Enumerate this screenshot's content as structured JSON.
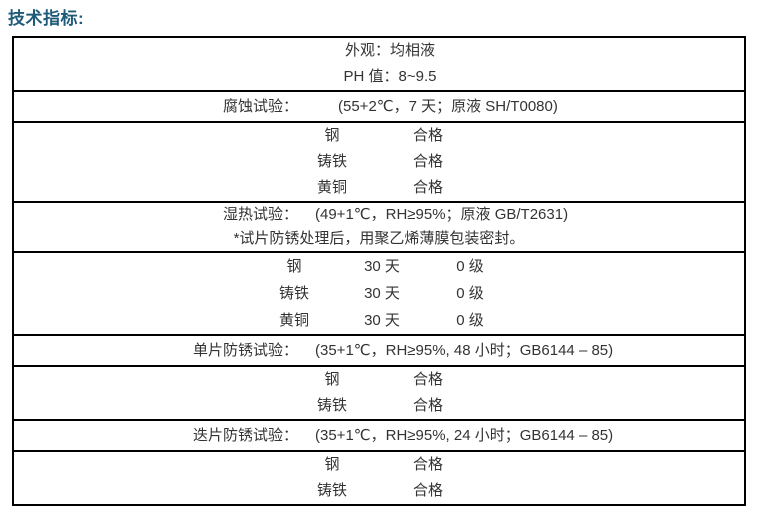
{
  "title": "技术指标:",
  "accent_color": "#1F5B78",
  "table": {
    "general": {
      "appearance": "外观：均相液",
      "ph": "PH 值：8~9.5"
    },
    "corrosion_test": {
      "label": "腐蚀试验：",
      "params": "(55+2℃，7 天；原液 SH/T0080)"
    },
    "corrosion_results": [
      {
        "material": "钢",
        "result": "合格"
      },
      {
        "material": "铸铁",
        "result": "合格"
      },
      {
        "material": "黄铜",
        "result": "合格"
      }
    ],
    "damp_heat_test": {
      "label": "湿热试验：",
      "params": "(49+1℃，RH≥95%；原液 GB/T2631)",
      "note": "*试片防锈处理后，用聚乙烯薄膜包装密封。"
    },
    "damp_heat_results": [
      {
        "material": "钢",
        "duration": "30 天",
        "grade": "0 级"
      },
      {
        "material": "铸铁",
        "duration": "30 天",
        "grade": "0 级"
      },
      {
        "material": "黄铜",
        "duration": "30 天",
        "grade": "0 级"
      }
    ],
    "single_piece_test": {
      "label": "单片防锈试验：",
      "params": "(35+1℃，RH≥95%, 48 小时；GB6144 – 85)"
    },
    "single_piece_results": [
      {
        "material": "钢",
        "result": "合格"
      },
      {
        "material": "铸铁",
        "result": "合格"
      }
    ],
    "stacked_piece_test": {
      "label": "迭片防锈试验：",
      "params": "(35+1℃，RH≥95%, 24 小时；GB6144 – 85)"
    },
    "stacked_piece_results": [
      {
        "material": "钢",
        "result": "合格"
      },
      {
        "material": "铸铁",
        "result": "合格"
      }
    ]
  }
}
